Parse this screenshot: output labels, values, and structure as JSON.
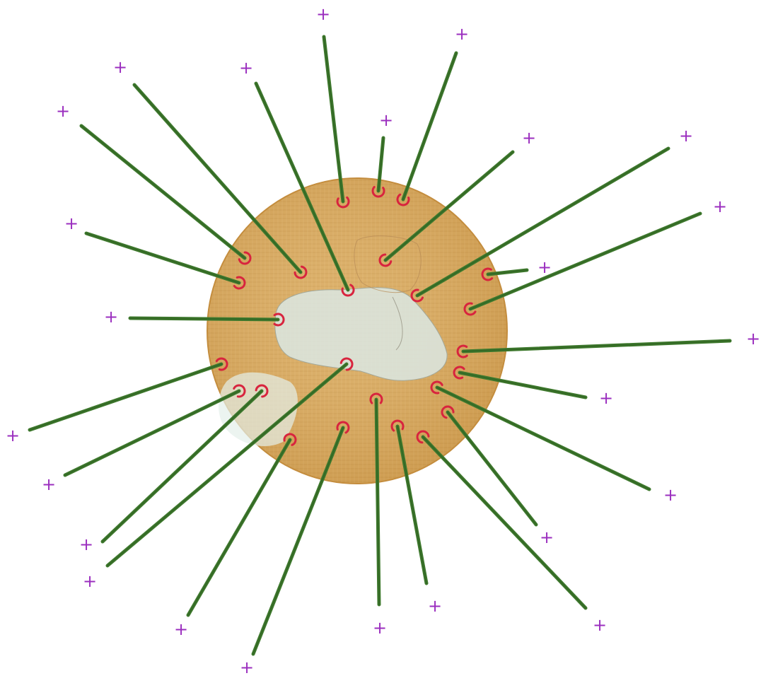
{
  "figure": {
    "title": "",
    "labels": [],
    "colors": {
      "body_fill": "#d8a85a",
      "body_edge": "#c8923f",
      "inner_shape": "#dce9e6",
      "spike": "#3f7a2e",
      "spike_dark": "#2d5e20",
      "base_marker": "#d8243e",
      "tip_marker": "#9b2fbf",
      "background": "#ffffff"
    },
    "spike_count": 27,
    "tip_marker_symbol": "+",
    "base_marker_shape": "red-arc"
  }
}
